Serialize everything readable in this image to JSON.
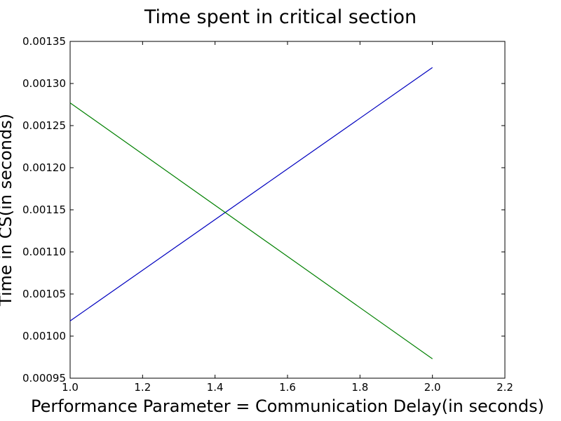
{
  "chart_data": {
    "type": "line",
    "title": "Time spent in critical section",
    "xlabel": "Performance Parameter = Communication Delay(in seconds)",
    "ylabel": "Time in CS(in seconds)",
    "xlim": [
      1.0,
      2.2
    ],
    "ylim": [
      0.00095,
      0.00135
    ],
    "xticks": [
      "1.0",
      "1.2",
      "1.4",
      "1.6",
      "1.8",
      "2.0",
      "2.2"
    ],
    "yticks": [
      "0.00095",
      "0.00100",
      "0.00105",
      "0.00110",
      "0.00115",
      "0.00120",
      "0.00125",
      "0.00130",
      "0.00135"
    ],
    "grid": false,
    "series": [
      {
        "color": "#0000bf",
        "x": [
          1.0,
          2.0
        ],
        "y": [
          0.001018,
          0.001319
        ]
      },
      {
        "color": "#008000",
        "x": [
          1.0,
          2.0
        ],
        "y": [
          0.001277,
          0.000973
        ]
      }
    ]
  }
}
